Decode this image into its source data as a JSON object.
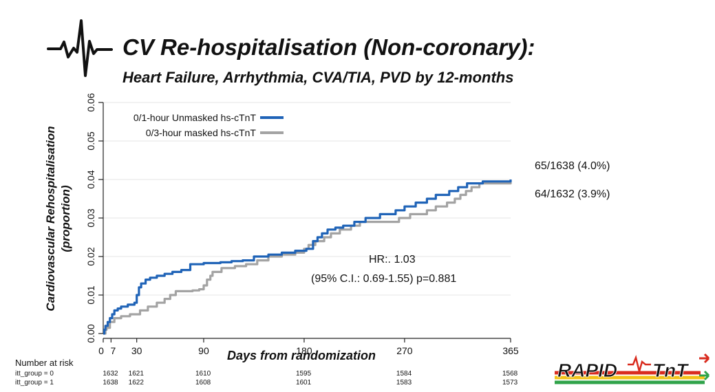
{
  "header": {
    "title": "CV Re-hospitalisation (Non-coronary):",
    "subtitle": "Heart Failure, Arrhythmia, CVA/TIA, PVD  by 12-months"
  },
  "colors": {
    "series1": "#1f63b7",
    "series2": "#a3a3a3",
    "grid": "#e4e4e4",
    "axis": "#222222"
  },
  "icons": {
    "header": "heartbeat-icon",
    "logo": "rapid-tnt-logo"
  },
  "logo_text": "RAPID-TnT",
  "chart_data": {
    "type": "line",
    "step": true,
    "title": "",
    "xlabel": "Days from randomization",
    "ylabel_line1": "Cardiovascular Rehospitalisation",
    "ylabel_line2": "(proportion)",
    "xlim": [
      0,
      365
    ],
    "ylim": [
      0,
      0.06
    ],
    "xticks": [
      0,
      7,
      30,
      90,
      180,
      270,
      365
    ],
    "xtick_labels": [
      "0",
      "7",
      "30",
      "90",
      "180",
      "270",
      "365"
    ],
    "yticks": [
      0,
      0.01,
      0.02,
      0.03,
      0.04,
      0.05,
      0.06
    ],
    "ytick_labels": [
      "0.00",
      "0.01",
      "0.02",
      "0.03",
      "0.04",
      "0.05",
      "0.06"
    ],
    "grid": true,
    "legend_position": "top-left",
    "series": [
      {
        "name": "0/1-hour Unmasked hs-cTnT",
        "color": "#1f63b7",
        "points": [
          [
            0,
            0
          ],
          [
            1,
            0.001
          ],
          [
            2,
            0.002
          ],
          [
            4,
            0.003
          ],
          [
            6,
            0.004
          ],
          [
            8,
            0.005
          ],
          [
            10,
            0.006
          ],
          [
            13,
            0.0065
          ],
          [
            16,
            0.007
          ],
          [
            22,
            0.0075
          ],
          [
            28,
            0.008
          ],
          [
            30,
            0.01
          ],
          [
            32,
            0.012
          ],
          [
            34,
            0.013
          ],
          [
            38,
            0.014
          ],
          [
            42,
            0.0145
          ],
          [
            48,
            0.015
          ],
          [
            55,
            0.0155
          ],
          [
            62,
            0.016
          ],
          [
            70,
            0.0165
          ],
          [
            78,
            0.018
          ],
          [
            90,
            0.0183
          ],
          [
            105,
            0.0185
          ],
          [
            115,
            0.0188
          ],
          [
            125,
            0.019
          ],
          [
            135,
            0.02
          ],
          [
            148,
            0.0205
          ],
          [
            160,
            0.021
          ],
          [
            172,
            0.0215
          ],
          [
            182,
            0.022
          ],
          [
            188,
            0.024
          ],
          [
            192,
            0.025
          ],
          [
            196,
            0.026
          ],
          [
            201,
            0.027
          ],
          [
            208,
            0.0275
          ],
          [
            215,
            0.028
          ],
          [
            225,
            0.029
          ],
          [
            235,
            0.03
          ],
          [
            248,
            0.031
          ],
          [
            262,
            0.032
          ],
          [
            270,
            0.033
          ],
          [
            280,
            0.034
          ],
          [
            290,
            0.035
          ],
          [
            298,
            0.036
          ],
          [
            310,
            0.037
          ],
          [
            318,
            0.038
          ],
          [
            326,
            0.039
          ],
          [
            340,
            0.0395
          ],
          [
            365,
            0.04
          ]
        ]
      },
      {
        "name": "0/3-hour masked hs-cTnT",
        "color": "#a3a3a3",
        "points": [
          [
            0,
            0
          ],
          [
            2,
            0.001
          ],
          [
            3,
            0.0015
          ],
          [
            6,
            0.003
          ],
          [
            10,
            0.004
          ],
          [
            16,
            0.0045
          ],
          [
            24,
            0.005
          ],
          [
            30,
            0.005
          ],
          [
            33,
            0.006
          ],
          [
            40,
            0.007
          ],
          [
            48,
            0.008
          ],
          [
            55,
            0.009
          ],
          [
            60,
            0.01
          ],
          [
            65,
            0.011
          ],
          [
            80,
            0.0112
          ],
          [
            86,
            0.0115
          ],
          [
            90,
            0.0125
          ],
          [
            93,
            0.014
          ],
          [
            96,
            0.015
          ],
          [
            98,
            0.016
          ],
          [
            106,
            0.017
          ],
          [
            118,
            0.0175
          ],
          [
            128,
            0.018
          ],
          [
            138,
            0.019
          ],
          [
            148,
            0.02
          ],
          [
            160,
            0.0205
          ],
          [
            172,
            0.021
          ],
          [
            180,
            0.022
          ],
          [
            184,
            0.023
          ],
          [
            190,
            0.024
          ],
          [
            198,
            0.025
          ],
          [
            204,
            0.026
          ],
          [
            212,
            0.027
          ],
          [
            222,
            0.028
          ],
          [
            230,
            0.029
          ],
          [
            260,
            0.029
          ],
          [
            265,
            0.03
          ],
          [
            275,
            0.031
          ],
          [
            290,
            0.032
          ],
          [
            298,
            0.033
          ],
          [
            308,
            0.034
          ],
          [
            315,
            0.035
          ],
          [
            320,
            0.036
          ],
          [
            325,
            0.037
          ],
          [
            330,
            0.038
          ],
          [
            337,
            0.039
          ],
          [
            365,
            0.0395
          ]
        ]
      }
    ],
    "annotations": {
      "hr": "HR:. 1.03",
      "ci": "(95% C.I.: 0.69-1.55) p=0.881",
      "event1": "65/1638 (4.0%)",
      "event2": "64/1632 (3.9%)"
    }
  },
  "risk_table": {
    "header": "Number at risk",
    "rows": [
      {
        "label": "itt_group = 0",
        "values": [
          "1632",
          "1621",
          "1610",
          "1595",
          "1584",
          "1568"
        ]
      },
      {
        "label": "itt_group = 1",
        "values": [
          "1638",
          "1622",
          "1608",
          "1601",
          "1583",
          "1573"
        ]
      }
    ]
  }
}
